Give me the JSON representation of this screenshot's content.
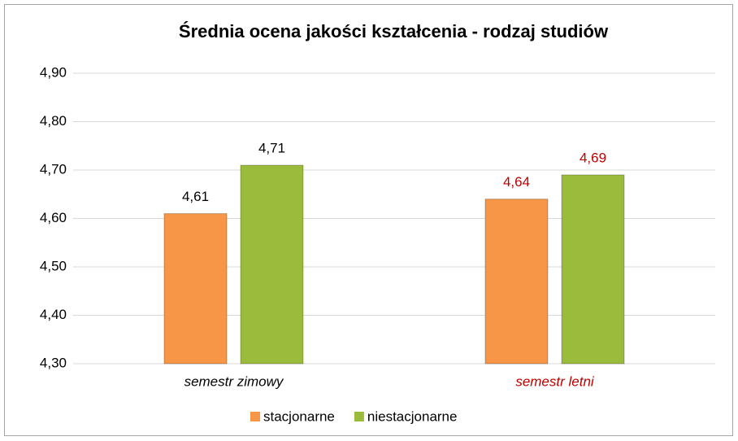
{
  "chart_data": {
    "type": "bar",
    "title": "Średnia ocena jakości kształcenia - rodzaj studiów",
    "categories": [
      "semestr zimowy",
      "semestr letni"
    ],
    "category_label_colors": [
      "#000000",
      "#c00000"
    ],
    "series": [
      {
        "name": "stacjonarne",
        "color": "#f79646",
        "values": [
          4.61,
          4.64
        ],
        "value_labels": [
          "4,61",
          "4,64"
        ]
      },
      {
        "name": "niestacjonarne",
        "color": "#9bbb3c",
        "values": [
          4.71,
          4.69
        ],
        "value_labels": [
          "4,71",
          "4,69"
        ]
      }
    ],
    "ylim": [
      4.3,
      4.9
    ],
    "yticks": [
      {
        "value": 4.3,
        "label": "4,30"
      },
      {
        "value": 4.4,
        "label": "4,40"
      },
      {
        "value": 4.5,
        "label": "4,50"
      },
      {
        "value": 4.6,
        "label": "4,60"
      },
      {
        "value": 4.7,
        "label": "4,70"
      },
      {
        "value": 4.8,
        "label": "4,80"
      },
      {
        "value": 4.9,
        "label": "4,90"
      }
    ],
    "grid": true
  }
}
